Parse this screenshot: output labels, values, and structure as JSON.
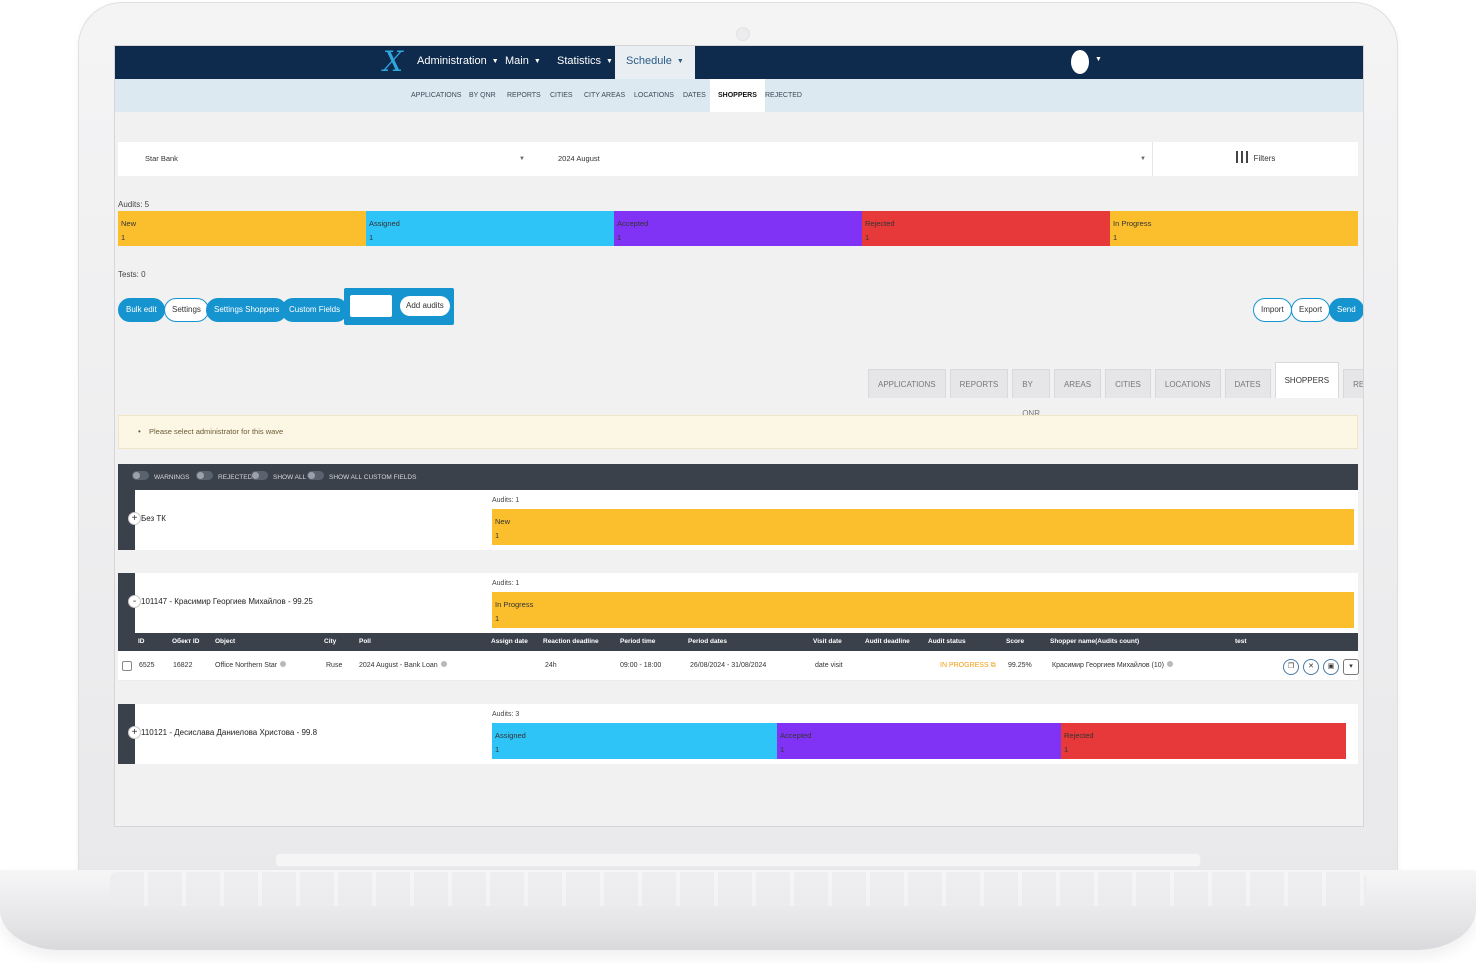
{
  "nav": {
    "logo": "X",
    "items": [
      {
        "label": "Administration",
        "caret": "▼"
      },
      {
        "label": "Main",
        "caret": "▼"
      },
      {
        "label": "Statistics",
        "caret": "▼"
      },
      {
        "label": "Schedule",
        "caret": "▼"
      }
    ],
    "user_caret": "▼"
  },
  "subnav": [
    "APPLICATIONS",
    "BY QNR",
    "REPORTS",
    "CITIES",
    "CITY AREAS",
    "LOCATIONS",
    "DATES",
    "SHOPPERS",
    "REJECTED"
  ],
  "filters": {
    "client": "Star Bank",
    "wave": "2024 August",
    "dropdown_arrow": "▼",
    "filters_label": "Filters"
  },
  "audits_summary": {
    "label": "Audits: 5",
    "segments": [
      {
        "status": "New",
        "count": "1",
        "color": "#fbbf2e"
      },
      {
        "status": "Assigned",
        "count": "1",
        "color": "#2ec4f7"
      },
      {
        "status": "Accepted",
        "count": "1",
        "color": "#8133f5"
      },
      {
        "status": "Rejected",
        "count": "1",
        "color": "#e8393a"
      },
      {
        "status": "In Progress",
        "count": "1",
        "color": "#fbbf2e"
      }
    ]
  },
  "tests_label": "Tests: 0",
  "actions": {
    "bulk_edit": "Bulk edit",
    "settings": "Settings",
    "settings_shoppers": "Settings Shoppers",
    "custom_fields": "Custom Fields",
    "add_audits": "Add audits",
    "import": "Import",
    "export": "Export",
    "send": "Send"
  },
  "tabs": [
    "APPLICATIONS",
    "REPORTS",
    "BY QNR",
    "AREAS",
    "CITIES",
    "LOCATIONS",
    "DATES",
    "SHOPPERS",
    "REJECTED"
  ],
  "notice": "Please select administrator for this wave",
  "toggles": [
    "WARNINGS",
    "REJECTED",
    "SHOW ALL",
    "SHOW ALL CUSTOM FIELDS"
  ],
  "groups": [
    {
      "toggle": "+",
      "name": "Без ТК",
      "audits": "Audits: 1",
      "segments": [
        {
          "status": "New",
          "count": "1",
          "color": "#fbbf2e"
        }
      ]
    },
    {
      "toggle": "-",
      "name": "101147 - Красимир Георгиев Михайлов - 99.25",
      "audits": "Audits: 1",
      "segments": [
        {
          "status": "In Progress",
          "count": "1",
          "color": "#fbbf2e"
        }
      ]
    },
    {
      "toggle": "+",
      "name": "110121 - Десислава Даниелова Христова - 99.8",
      "audits": "Audits: 3",
      "segments": [
        {
          "status": "Assigned",
          "count": "1",
          "color": "#2ec4f7"
        },
        {
          "status": "Accepted",
          "count": "1",
          "color": "#8133f5"
        },
        {
          "status": "Rejected",
          "count": "1",
          "color": "#e8393a"
        }
      ]
    }
  ],
  "table": {
    "columns": [
      "ID",
      "Обект ID",
      "Object",
      "City",
      "Poll",
      "Assign date",
      "Reaction deadline",
      "Period time",
      "Period dates",
      "Visit date",
      "Audit deadline",
      "Audit status",
      "Score",
      "Shopper name(Audits count)",
      "test"
    ],
    "row": {
      "id": "6525",
      "object_id": "16822",
      "object": "Office Northern Star",
      "city": "Ruse",
      "poll": "2024 August - Bank Loan",
      "assign_date": "",
      "reaction_deadline": "24h",
      "period_time": "09:00 - 18:00",
      "period_dates": "26/08/2024 - 31/08/2024",
      "visit_date": "date visit",
      "audit_deadline": "",
      "audit_status": "IN PROGRESS",
      "score": "99.25%",
      "shopper": "Красимир Георгиев Михайлов (10)",
      "test": ""
    },
    "action_icons": [
      "copy-icon",
      "close-icon",
      "save-icon",
      "expand-icon"
    ],
    "action_glyphs": [
      "❐",
      "✕",
      "▣",
      "▾"
    ]
  }
}
